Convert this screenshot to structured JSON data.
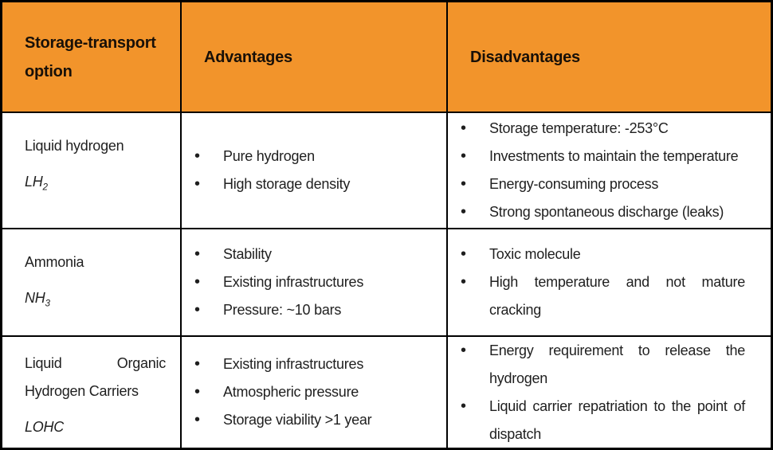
{
  "bullet_glyph": "•",
  "colors": {
    "header_bg": "#F2942B",
    "border": "#000000",
    "header_text": "#181008",
    "body_text": "#1F1F1F"
  },
  "header": {
    "option_label": "Storage-transport option",
    "advantages_label": "Advantages",
    "disadvantages_label": "Disadvantages"
  },
  "rows": [
    {
      "name": "Liquid hydrogen",
      "formula": "LH",
      "formula_sub": "2",
      "advantages": [
        "Pure hydrogen",
        "High storage density"
      ],
      "disadvantages": [
        "Storage temperature: -253°C",
        "Investments to maintain the temperature",
        "Energy-consuming process",
        "Strong spontaneous discharge (leaks)"
      ]
    },
    {
      "name": "Ammonia",
      "formula": "NH",
      "formula_sub": "3",
      "advantages": [
        "Stability",
        "Existing infrastructures",
        "Pressure: ~10 bars"
      ],
      "disadvantages": [
        "Toxic molecule",
        "High temperature and not mature cracking"
      ]
    },
    {
      "name": "Liquid Organic Hydrogen Carriers",
      "formula": "LOHC",
      "formula_sub": "",
      "advantages": [
        "Existing infrastructures",
        "Atmospheric pressure",
        "Storage viability >1 year"
      ],
      "disadvantages": [
        "Energy requirement to release the hydrogen",
        "Liquid carrier repatriation to the point of dispatch"
      ]
    }
  ]
}
